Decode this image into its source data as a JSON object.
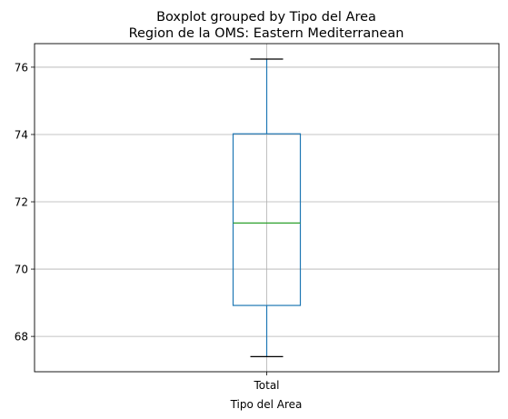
{
  "chart_data": {
    "type": "boxplot",
    "title": "Boxplot grouped by Tipo del Area",
    "subtitle": "Region de la OMS: Eastern Mediterranean",
    "xlabel": "Tipo del Area",
    "ylabel": "",
    "categories": [
      "Total"
    ],
    "boxes": [
      {
        "category": "Total",
        "whisker_low": 67.4,
        "q1": 68.92,
        "median": 71.37,
        "q3": 74.02,
        "whisker_high": 76.24
      }
    ],
    "ylim": [
      66.95,
      76.7
    ],
    "yticks": [
      68,
      70,
      72,
      74,
      76
    ],
    "grid": true,
    "colors": {
      "box": "#1f77b4",
      "median": "#2ca02c",
      "whisker_cap": "#000000",
      "grid": "#b0b0b0"
    }
  }
}
